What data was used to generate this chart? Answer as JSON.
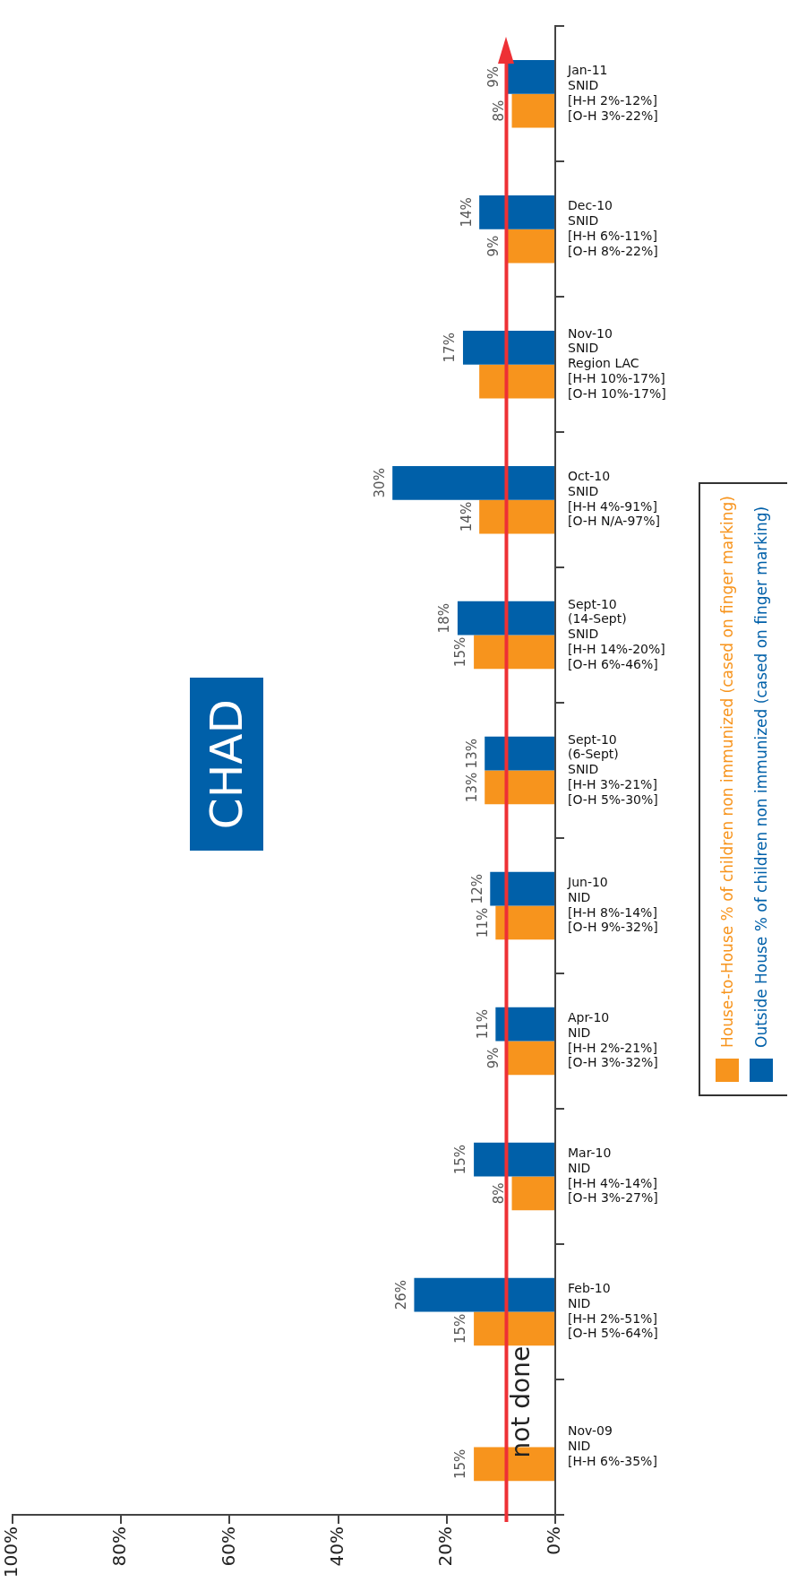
{
  "chart_data": {
    "type": "bar",
    "orientation": "horizontal",
    "categories": [
      "Jan-11\nSNID\n[H-H 2%-12%]\n[O-H 3%-22%]",
      "Dec-10\nSNID\n[H-H 6%-11%]\n[O-H 8%-22%]",
      "Nov-10\nSNID\nRegion LAC\n[H-H 10%-17%]\n[O-H 10%-17%]",
      "Oct-10\nSNID\n[H-H 4%-91%]\n[O-H N/A-97%]",
      "Sept-10\n(14-Sept)\nSNID\n[H-H 14%-20%]\n[O-H 6%-46%]",
      "Sept-10\n(6-Sept)\nSNID\n[H-H 3%-21%]\n[O-H 5%-30%]",
      "Jun-10\nNID\n[H-H 8%-14%]\n[O-H 9%-32%]",
      "Apr-10\nNID\n[H-H 2%-21%]\n[O-H 3%-32%]",
      "Mar-10\nNID\n[H-H 4%-14%]\n[O-H 3%-27%]",
      "Feb-10\nNID\n[H-H 2%-51%]\n[O-H 5%-64%]",
      "Nov-09\nNID\n[H-H 6%-35%]"
    ],
    "series": [
      {
        "name": "House-to-House % of children non immunized (cased on finger marking)",
        "color": "#f7941d",
        "values": [
          8,
          9,
          14,
          14,
          15,
          13,
          11,
          9,
          8,
          15,
          15
        ],
        "value_labels": [
          "8%",
          "9%",
          null,
          "14%",
          "15%",
          "13%",
          "11%",
          "9%",
          "8%",
          "15%",
          "15%"
        ]
      },
      {
        "name": "Outside House % of children non immunized (cased on finger marking)",
        "color": "#0060a9",
        "values": [
          9,
          14,
          17,
          30,
          18,
          13,
          12,
          11,
          15,
          26,
          null
        ],
        "value_labels": [
          "9%",
          "14%",
          "17%",
          "30%",
          "18%",
          "13%",
          "12%",
          "11%",
          "15%",
          "26%",
          null
        ]
      }
    ],
    "xlim": [
      100,
      0
    ],
    "xticks": [
      {
        "value": 100,
        "label": "100%"
      },
      {
        "value": 80,
        "label": "80%"
      },
      {
        "value": 60,
        "label": "60%"
      },
      {
        "value": 40,
        "label": "40%"
      },
      {
        "value": 20,
        "label": "20%"
      },
      {
        "value": 0,
        "label": "0%"
      }
    ],
    "ref_lines": [
      {
        "axis": "x",
        "value": 9,
        "color": "#ee3035"
      }
    ],
    "annotations": [
      "CHAD",
      {
        "text": "not done",
        "x": 6,
        "y": "Nov-09\nNID\n[H-H 6%-35%]"
      }
    ],
    "grid": false,
    "legend": "right"
  }
}
